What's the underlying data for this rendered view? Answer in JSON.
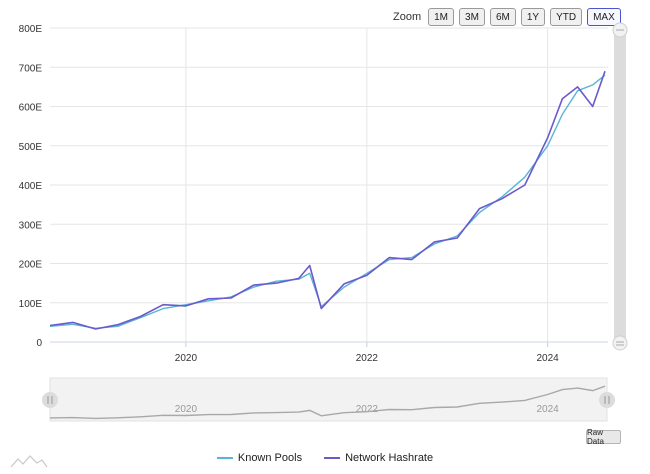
{
  "zoom": {
    "label": "Zoom",
    "buttons": [
      "1M",
      "3M",
      "6M",
      "1Y",
      "YTD",
      "MAX"
    ],
    "active": "MAX"
  },
  "raw_data_label": "Raw Data",
  "colors": {
    "known_pools": "#5ab4d6",
    "network_hashrate": "#6a5acd",
    "navigator": "#a8a8a8",
    "grid": "#e6e6e6"
  },
  "chart_data": {
    "type": "line",
    "y_unit_suffix": "E",
    "ylim": [
      0,
      800
    ],
    "y_ticks": [
      "0",
      "100E",
      "200E",
      "300E",
      "400E",
      "500E",
      "600E",
      "700E",
      "800E"
    ],
    "y_tick_values": [
      0,
      100,
      200,
      300,
      400,
      500,
      600,
      700,
      800
    ],
    "xlim": [
      "2018-07-01",
      "2024-09-01"
    ],
    "x_ticks": [
      "2020",
      "2022",
      "2024"
    ],
    "x_tick_values": [
      "2020-01-01",
      "2022-01-01",
      "2024-01-01"
    ],
    "grid": true,
    "legend_position": "bottom-center",
    "x": [
      "2018-07-01",
      "2018-10-01",
      "2019-01-01",
      "2019-04-01",
      "2019-07-01",
      "2019-10-01",
      "2020-01-01",
      "2020-04-01",
      "2020-07-01",
      "2020-10-01",
      "2021-01-01",
      "2021-04-01",
      "2021-05-15",
      "2021-07-01",
      "2021-10-01",
      "2022-01-01",
      "2022-04-01",
      "2022-07-01",
      "2022-10-01",
      "2023-01-01",
      "2023-04-01",
      "2023-07-01",
      "2023-10-01",
      "2024-01-01",
      "2024-03-01",
      "2024-05-01",
      "2024-07-01",
      "2024-08-20"
    ],
    "series": [
      {
        "name": "Known Pools",
        "values": [
          40,
          45,
          35,
          40,
          62,
          85,
          95,
          105,
          115,
          140,
          155,
          160,
          175,
          90,
          140,
          175,
          210,
          215,
          250,
          270,
          330,
          370,
          420,
          500,
          580,
          640,
          655,
          680
        ]
      },
      {
        "name": "Network Hashrate",
        "values": [
          42,
          50,
          33,
          44,
          65,
          95,
          92,
          110,
          112,
          145,
          150,
          162,
          195,
          85,
          148,
          170,
          215,
          210,
          255,
          265,
          340,
          365,
          400,
          520,
          620,
          650,
          600,
          690
        ]
      }
    ],
    "navigator": {
      "x_ticks": [
        "2020",
        "2022",
        "2024"
      ]
    }
  }
}
